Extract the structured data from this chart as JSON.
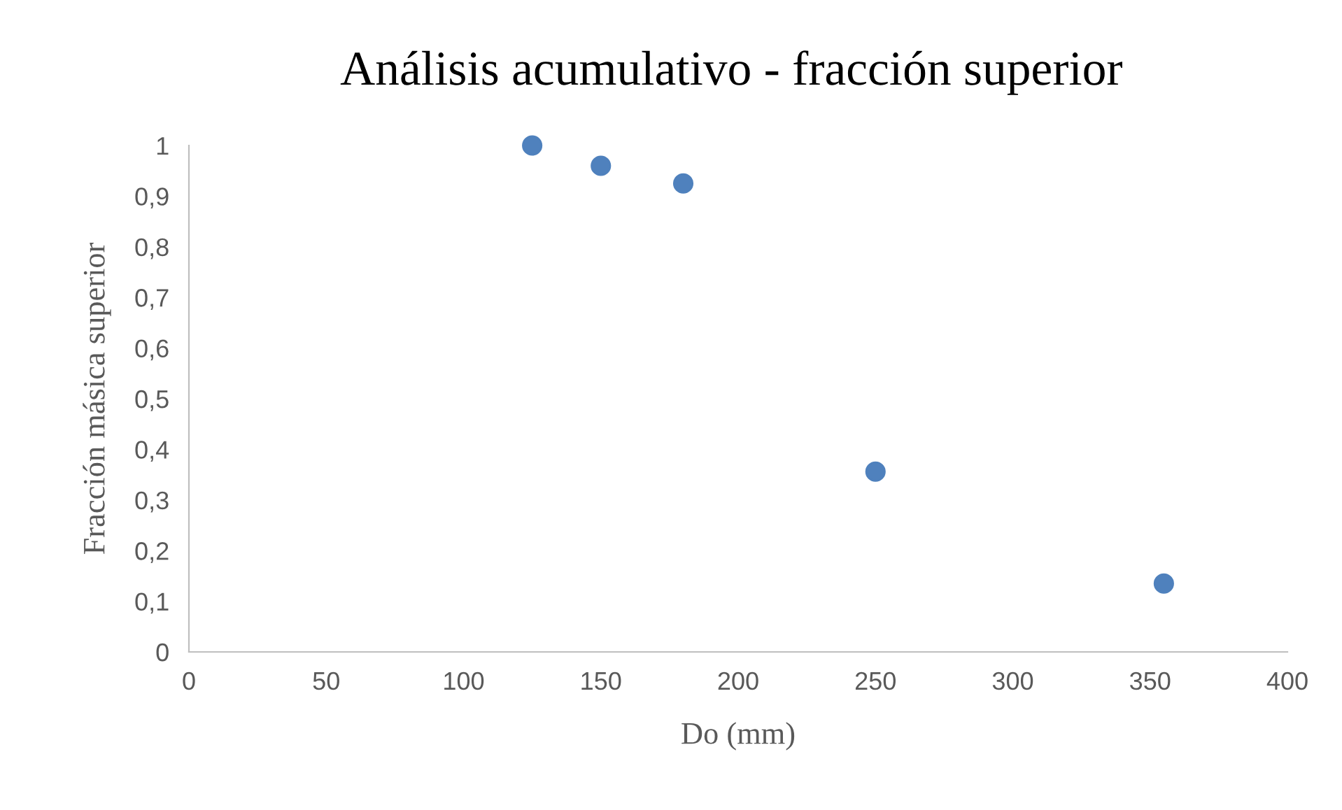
{
  "chart_data": {
    "type": "scatter",
    "title": "Análisis acumulativo - fracción superior",
    "xlabel": "Do (mm)",
    "ylabel": "Fracción másica superior",
    "x": [
      125,
      150,
      180,
      250,
      355
    ],
    "series": [
      {
        "color": "#4f81bd",
        "values": [
          1.0,
          0.96,
          0.925,
          0.356,
          0.135
        ]
      }
    ],
    "marker": "circle",
    "xlim": [
      0,
      400
    ],
    "xticks": [
      0,
      50,
      100,
      150,
      200,
      250,
      300,
      350,
      400
    ],
    "ylim": [
      0,
      1
    ],
    "yticks": [
      0,
      {
        "value": 0.1,
        "label": "0,1"
      },
      {
        "value": 0.2,
        "label": "0,2"
      },
      {
        "value": 0.3,
        "label": "0,3"
      },
      {
        "value": 0.4,
        "label": "0,4"
      },
      {
        "value": 0.5,
        "label": "0,5"
      },
      {
        "value": 0.6,
        "label": "0,6"
      },
      {
        "value": 0.7,
        "label": "0,7"
      },
      {
        "value": 0.8,
        "label": "0,8"
      },
      {
        "value": 0.9,
        "label": "0,9"
      },
      1
    ],
    "grid": false,
    "legend": false
  }
}
